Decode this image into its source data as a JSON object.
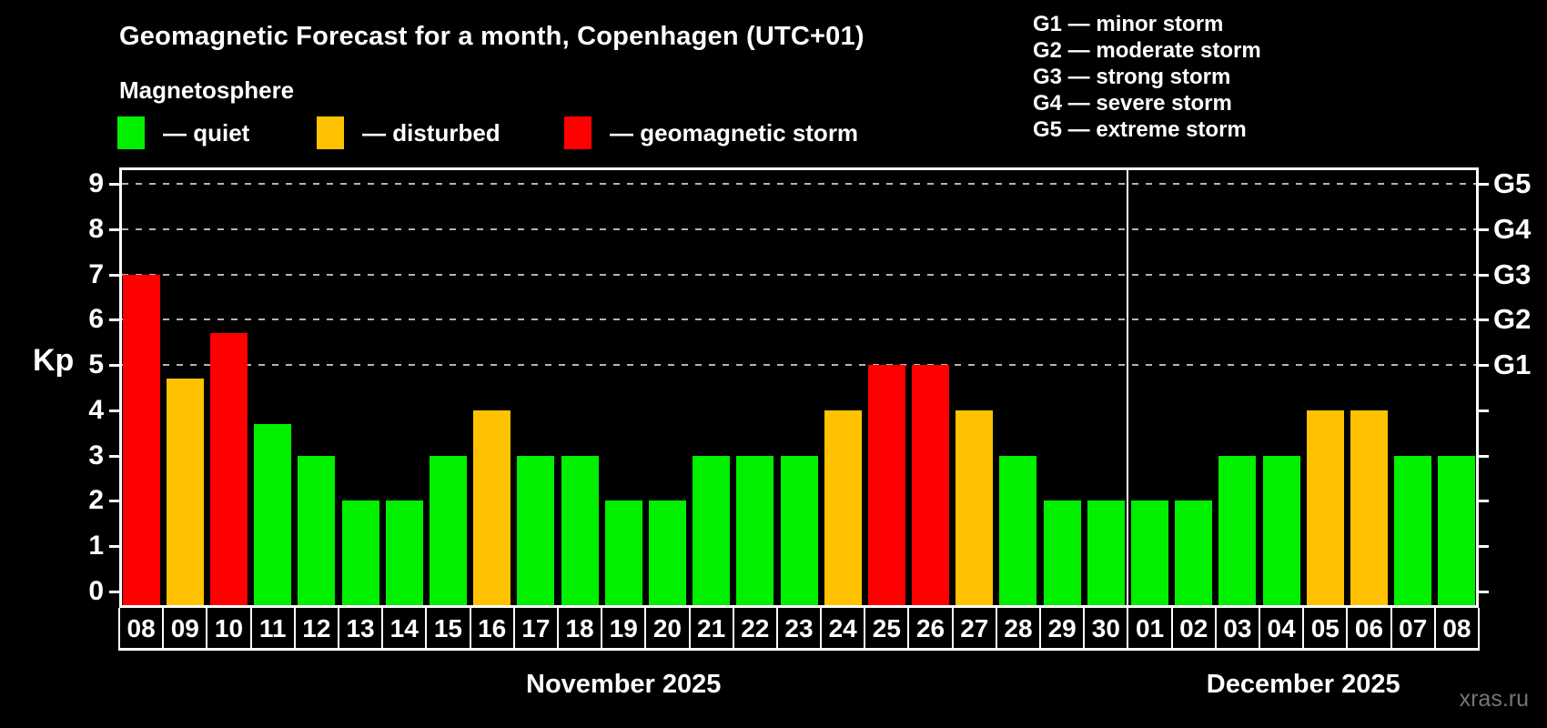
{
  "title": "Geomagnetic Forecast for a month, Copenhagen (UTC+01)",
  "subtitle": "Magnetosphere",
  "legend": {
    "items": [
      {
        "label": "— quiet",
        "color": "#00f000"
      },
      {
        "label": "— disturbed",
        "color": "#ffc200"
      },
      {
        "label": "— geomagnetic storm",
        "color": "#ff0000"
      }
    ]
  },
  "g_legend": [
    "G1 — minor storm",
    "G2 — moderate storm",
    "G3 — strong storm",
    "G4 — severe storm",
    "G5 — extreme storm"
  ],
  "watermark": "xras.ru",
  "chart_data": {
    "type": "bar",
    "title": "Geomagnetic Forecast for a month, Copenhagen (UTC+01)",
    "ylabel": "Kp",
    "ylim": [
      0,
      9
    ],
    "y_ticks": [
      0,
      1,
      2,
      3,
      4,
      5,
      6,
      7,
      8,
      9
    ],
    "grid_levels": [
      5,
      6,
      7,
      8,
      9
    ],
    "right_axis_labels": [
      {
        "kp": 5,
        "label": "G1"
      },
      {
        "kp": 6,
        "label": "G2"
      },
      {
        "kp": 7,
        "label": "G3"
      },
      {
        "kp": 8,
        "label": "G4"
      },
      {
        "kp": 9,
        "label": "G5"
      }
    ],
    "legend_position": "top-left",
    "grid": "dashed horizontal at Kp 5-9",
    "months": [
      {
        "label": "November 2025",
        "days": [
          "08",
          "09",
          "10",
          "11",
          "12",
          "13",
          "14",
          "15",
          "16",
          "17",
          "18",
          "19",
          "20",
          "21",
          "22",
          "23",
          "24",
          "25",
          "26",
          "27",
          "28",
          "29",
          "30"
        ]
      },
      {
        "label": "December 2025",
        "days": [
          "01",
          "02",
          "03",
          "04",
          "05",
          "06",
          "07",
          "08"
        ]
      }
    ],
    "values": [
      7,
      4.7,
      5.7,
      3.7,
      3,
      2,
      2,
      3,
      4,
      3,
      3,
      2,
      2,
      3,
      3,
      3,
      4,
      5,
      5,
      4,
      3,
      2,
      2,
      2,
      2,
      3,
      3,
      4,
      4,
      3,
      3
    ],
    "bar_color_rule": {
      "storm_min_kp": 5,
      "disturbed_min_kp": 4
    },
    "colors": {
      "quiet": "#00f000",
      "disturbed": "#ffc200",
      "storm": "#ff0000"
    }
  }
}
